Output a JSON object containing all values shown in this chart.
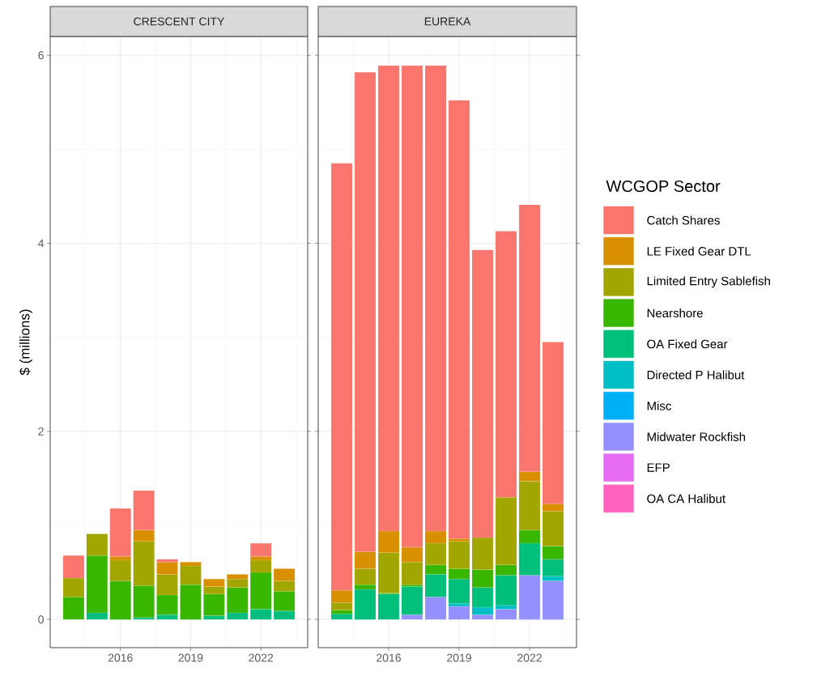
{
  "chart_data": [
    {
      "type": "bar",
      "stacked": true,
      "title": "CRESCENT CITY",
      "ylabel": "$ (millions)",
      "x": [
        2014,
        2015,
        2016,
        2017,
        2018,
        2019,
        2020,
        2021,
        2022,
        2023
      ],
      "xlim": [
        2013,
        2024
      ],
      "xticks": [
        2016,
        2019,
        2022
      ],
      "ylim": [
        -0.3,
        6.2
      ],
      "yticks": [
        0,
        2,
        4,
        6
      ],
      "grid": true,
      "series": [
        {
          "color": "#00bf7d",
          "values": [
            null,
            0.07,
            null,
            0.02,
            0.05,
            null,
            0.04,
            0.07,
            0.11,
            0.09
          ]
        },
        {
          "color": "#39b600",
          "values": [
            0.24,
            0.61,
            0.41,
            0.34,
            0.21,
            0.37,
            0.23,
            0.27,
            0.39,
            0.21
          ]
        },
        {
          "color": "#a3a500",
          "values": [
            0.2,
            0.23,
            0.22,
            0.47,
            0.22,
            0.2,
            0.08,
            0.09,
            0.13,
            0.11
          ]
        },
        {
          "color": "#d89000",
          "values": [
            null,
            null,
            0.04,
            0.12,
            0.13,
            0.04,
            0.08,
            0.05,
            0.04,
            0.13
          ]
        },
        {
          "color": "#f8766d",
          "values": [
            0.24,
            null,
            0.51,
            0.42,
            0.03,
            null,
            null,
            null,
            0.14,
            null
          ]
        }
      ]
    },
    {
      "type": "bar",
      "stacked": true,
      "title": "EUREKA",
      "x": [
        2014,
        2015,
        2016,
        2017,
        2018,
        2019,
        2020,
        2021,
        2022,
        2023
      ],
      "xlim": [
        2013,
        2024
      ],
      "xticks": [
        2016,
        2019,
        2022
      ],
      "ylim": [
        -0.3,
        6.2
      ],
      "yticks": [
        0,
        2,
        4,
        6
      ],
      "grid": true,
      "tick_labels": "x",
      "legend": "right",
      "legend_title": "WCGOP Sector",
      "series": [
        {
          "name": "OA CA Halibut",
          "color": "#ff62bc",
          "values": [
            null,
            null,
            null,
            null,
            null,
            null,
            null,
            null,
            null,
            null
          ]
        },
        {
          "name": "EFP",
          "color": "#e76bf3",
          "values": [
            null,
            null,
            null,
            null,
            null,
            null,
            null,
            null,
            null,
            null
          ]
        },
        {
          "name": "Midwater Rockfish",
          "color": "#9590ff",
          "values": [
            null,
            null,
            null,
            0.05,
            0.24,
            0.14,
            0.05,
            0.11,
            0.47,
            0.41
          ]
        },
        {
          "name": "Misc",
          "color": "#00b0f6",
          "values": [
            null,
            null,
            null,
            null,
            null,
            null,
            null,
            null,
            null,
            null
          ]
        },
        {
          "name": "Directed P Halibut",
          "color": "#00bfc4",
          "values": [
            null,
            null,
            null,
            null,
            null,
            0.03,
            0.08,
            0.04,
            null,
            0.05
          ]
        },
        {
          "name": "OA Fixed Gear",
          "color": "#00bf7d",
          "values": [
            0.06,
            0.32,
            0.27,
            0.3,
            0.24,
            0.26,
            0.21,
            0.32,
            0.34,
            0.18
          ]
        },
        {
          "name": "Nearshore",
          "color": "#39b600",
          "values": [
            0.04,
            0.05,
            0.01,
            0.02,
            0.1,
            0.11,
            0.19,
            0.11,
            0.14,
            0.14
          ]
        },
        {
          "name": "Limited Entry Sablefish",
          "color": "#a3a500",
          "values": [
            0.08,
            0.17,
            0.43,
            0.24,
            0.23,
            0.29,
            0.34,
            0.72,
            0.52,
            0.37
          ]
        },
        {
          "name": "LE Fixed Gear DTL",
          "color": "#d89000",
          "values": [
            0.13,
            0.18,
            0.23,
            0.16,
            0.13,
            0.03,
            null,
            null,
            0.1,
            0.08
          ]
        },
        {
          "name": "Catch Shares",
          "color": "#f8766d",
          "values": [
            4.54,
            5.1,
            4.95,
            5.12,
            4.95,
            4.66,
            3.06,
            2.83,
            2.84,
            1.72
          ]
        }
      ]
    }
  ]
}
